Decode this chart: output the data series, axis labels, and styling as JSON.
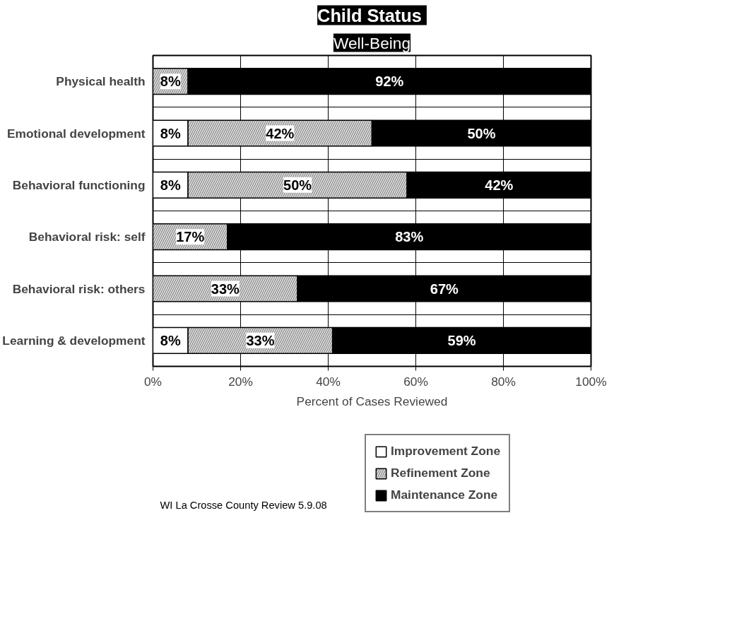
{
  "chart_data": {
    "type": "bar",
    "orientation": "horizontal",
    "stacked": true,
    "title": "Child  Status",
    "subtitle": "Well-Being",
    "xlabel": "Percent of Cases Reviewed",
    "categories": [
      "Physical health",
      "Emotional development",
      "Behavioral functioning",
      "Behavioral risk: self",
      "Behavioral risk: others",
      "Learning & development"
    ],
    "series": [
      {
        "name": "Improvement Zone",
        "color": "#ffffff",
        "values": [
          null,
          8,
          8,
          null,
          null,
          8
        ],
        "value_labels": [
          null,
          "8%",
          "8%",
          null,
          null,
          "8%"
        ]
      },
      {
        "name": "Refinement Zone",
        "color": "#d9d9d9",
        "values": [
          8,
          42,
          50,
          17,
          33,
          33
        ],
        "value_labels": [
          "8%",
          "42%",
          "50%",
          "17%",
          "33%",
          "33%"
        ]
      },
      {
        "name": "Maintenance Zone",
        "color": "#000000",
        "values": [
          92,
          50,
          42,
          83,
          67,
          59
        ],
        "value_labels": [
          "92%",
          "50%",
          "42%",
          "83%",
          "67%",
          "59%"
        ]
      }
    ],
    "xlim": [
      0,
      100
    ],
    "xticks": [
      {
        "value": 0,
        "label": "0%"
      },
      {
        "value": 20,
        "label": "20%"
      },
      {
        "value": 40,
        "label": "40%"
      },
      {
        "value": 60,
        "label": "60%"
      },
      {
        "value": 80,
        "label": "80%"
      },
      {
        "value": 100,
        "label": "100%"
      }
    ],
    "grid": true,
    "legend": "bottom",
    "annotations": [
      "WI La Crosse County Review 5.9.08"
    ]
  }
}
